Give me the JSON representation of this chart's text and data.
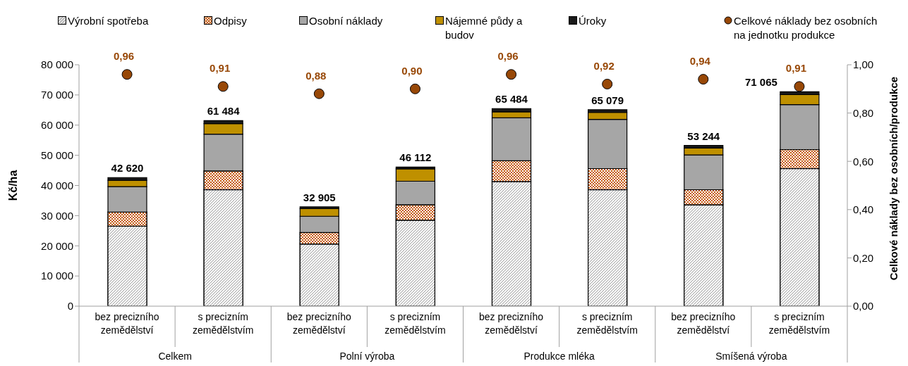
{
  "chart_data": {
    "type": "bar",
    "stacked": true,
    "categories": [
      "bez precizního zemědělství",
      "s precizním zemědělstvím",
      "bez precizního zemědělství",
      "s precizním zemědělstvím",
      "bez precizního zemědělství",
      "s precizním zemědělstvím",
      "bez precizního zemědělství",
      "s precizním zemědělstvím"
    ],
    "annotations": [
      "Celkem",
      "Polní výroba",
      "Produkce mléka",
      "Smíšená výroba"
    ],
    "ylabel": "Kč/ha",
    "y2label": "Celkové náklady bez osobních/produkce",
    "ylim": [
      0,
      80000
    ],
    "yticks": [
      {
        "value": 0,
        "label": "0"
      },
      {
        "value": 10000,
        "label": "10 000"
      },
      {
        "value": 20000,
        "label": "20 000"
      },
      {
        "value": 30000,
        "label": "30 000"
      },
      {
        "value": 40000,
        "label": "40 000"
      },
      {
        "value": 50000,
        "label": "50 000"
      },
      {
        "value": 60000,
        "label": "60 000"
      },
      {
        "value": 70000,
        "label": "70 000"
      },
      {
        "value": 80000,
        "label": "80 000"
      }
    ],
    "y2lim": [
      0,
      1
    ],
    "y2ticks": [
      {
        "value": 0,
        "label": "0,00"
      },
      {
        "value": 0.2,
        "label": "0,20"
      },
      {
        "value": 0.4,
        "label": "0,40"
      },
      {
        "value": 0.6,
        "label": "0,60"
      },
      {
        "value": 0.8,
        "label": "0,80"
      },
      {
        "value": 1,
        "label": "1,00"
      }
    ],
    "series": [
      {
        "name": "Výrobní spotřeba",
        "color": "#7f7f7f",
        "values": [
          26500,
          38600,
          20600,
          28500,
          41300,
          38600,
          33600,
          45600
        ]
      },
      {
        "name": "Odpisy",
        "color": "#c55a11",
        "values": [
          4700,
          6200,
          3800,
          5100,
          6900,
          7000,
          5000,
          6300
        ]
      },
      {
        "name": "Osobní náklady",
        "color": "#a6a6a6",
        "values": [
          8400,
          12200,
          5400,
          7800,
          14200,
          16300,
          11500,
          14900
        ]
      },
      {
        "name": "Nájemné půdy a budov",
        "color": "#bf9000",
        "values": [
          2100,
          3500,
          2500,
          4100,
          2000,
          2300,
          2300,
          3300
        ]
      },
      {
        "name": "Úroky",
        "color": "#1a1a1a",
        "values": [
          920,
          984,
          605,
          612,
          1084,
          879,
          844,
          965
        ]
      },
      {
        "type": "scatter",
        "axis": "y2",
        "marker": "circle",
        "name": "Celkové náklady bez osobních na jednotku produkce",
        "color": "#984807",
        "values": [
          0.96,
          0.91,
          0.88,
          0.9,
          0.96,
          0.92,
          0.94,
          0.91
        ],
        "value_labels": [
          "0,96",
          "0,91",
          "0,88",
          "0,90",
          "0,96",
          "0,92",
          "0,94",
          "0,91"
        ]
      }
    ],
    "totals": [
      "42 620",
      "61 484",
      "32 905",
      "46 112",
      "65 484",
      "65 079",
      "53 244",
      "71 065"
    ],
    "legend": "top"
  }
}
